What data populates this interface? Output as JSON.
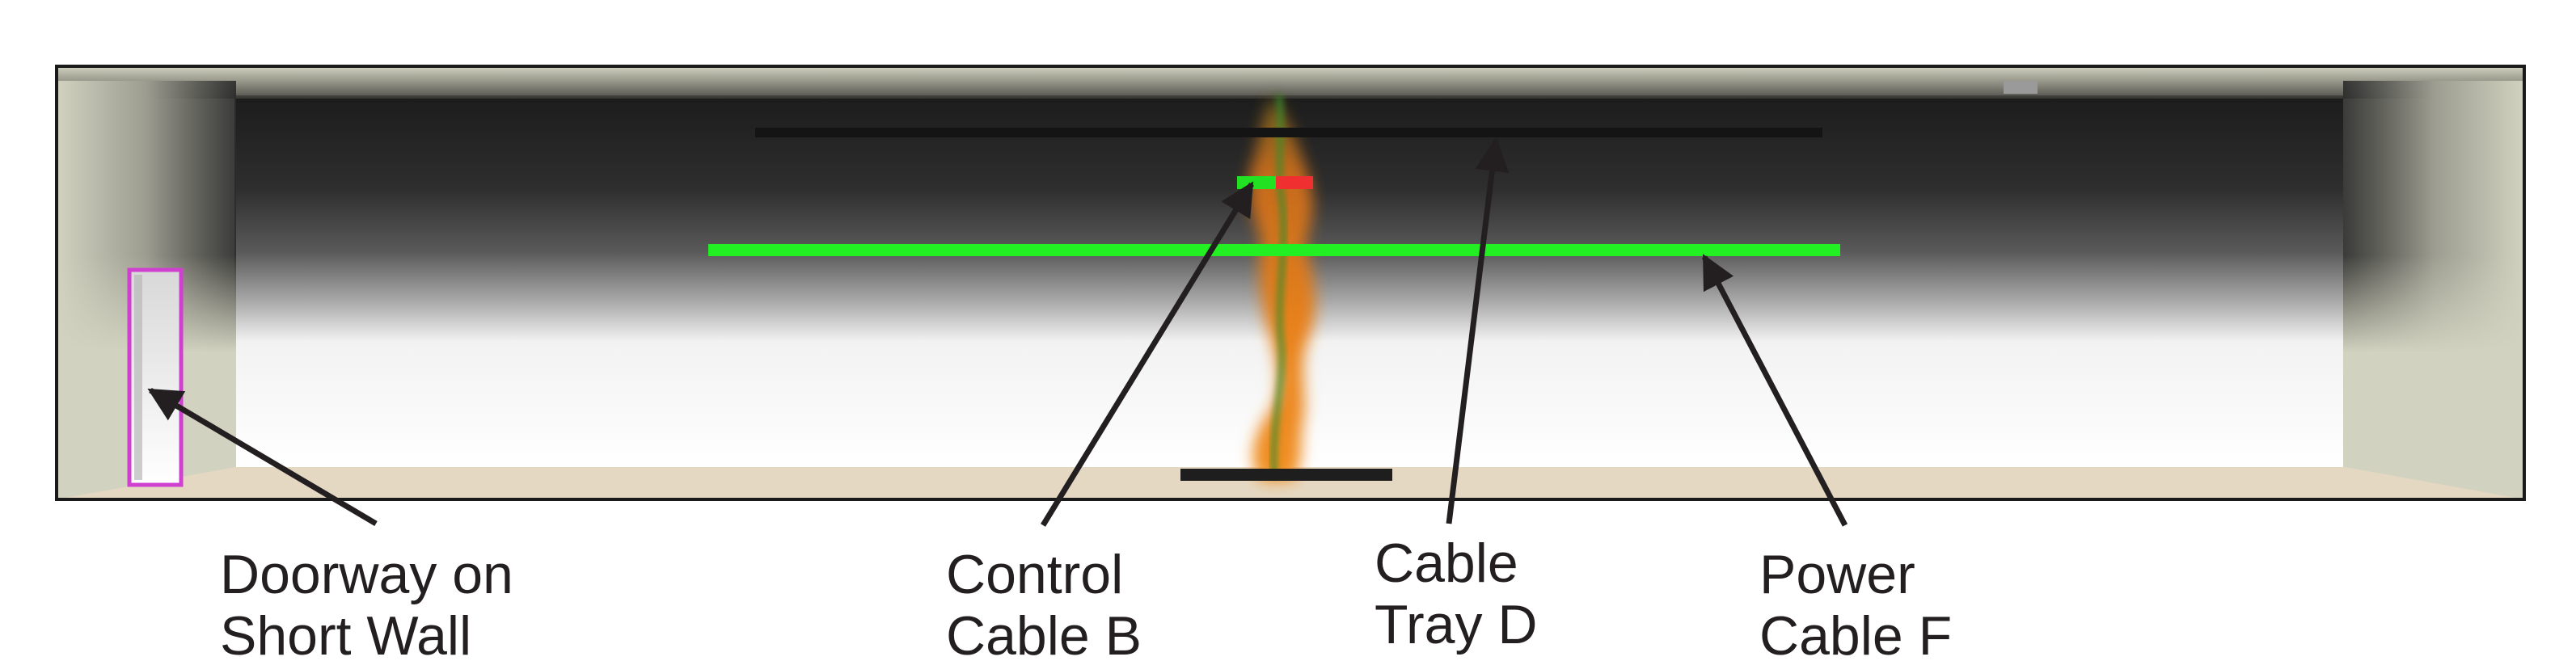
{
  "labels": {
    "doorway": [
      "Doorway on",
      "Short Wall"
    ],
    "control_cable": [
      "Control",
      "Cable B"
    ],
    "cable_tray": [
      "Cable",
      "Tray D"
    ],
    "power_cable": [
      "Power",
      "Cable F"
    ]
  },
  "colors": {
    "wall": "#d2d2c0",
    "floor": "#e5d8c3",
    "smoke": "#262626",
    "cable_tray": "#141414",
    "power_cable": "#22f022",
    "control_cable_green": "#22e022",
    "control_cable_red": "#f03030",
    "doorway_outline": "#d040d0",
    "fire": "#e8821e",
    "burner": "#1e1e1e",
    "arrow": "#231f20"
  }
}
